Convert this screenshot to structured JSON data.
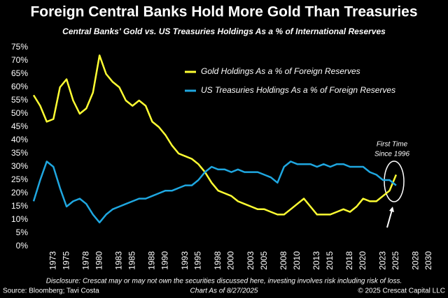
{
  "chart_data": {
    "type": "line",
    "title": "Foreign Central Banks Hold More Gold Than Treasuries",
    "subtitle": "Central Banks' Gold vs. US Treasuries Holdings As a % of International Reserves",
    "x": [
      1970,
      1971,
      1972,
      1973,
      1974,
      1975,
      1976,
      1977,
      1978,
      1979,
      1980,
      1981,
      1982,
      1983,
      1984,
      1985,
      1986,
      1987,
      1988,
      1989,
      1990,
      1991,
      1992,
      1993,
      1994,
      1995,
      1996,
      1997,
      1998,
      1999,
      2000,
      2001,
      2002,
      2003,
      2004,
      2005,
      2006,
      2007,
      2008,
      2009,
      2010,
      2011,
      2012,
      2013,
      2014,
      2015,
      2016,
      2017,
      2018,
      2019,
      2020,
      2021,
      2022,
      2023,
      2024,
      2025
    ],
    "series": [
      {
        "name": "Gold Holdings As a % of Foreign Reserves",
        "color": "#ffff33",
        "values": [
          57,
          53,
          47,
          48,
          60,
          63,
          55,
          50,
          52,
          58,
          72,
          65,
          62,
          60,
          55,
          53,
          55,
          53,
          47,
          45,
          42,
          38,
          35,
          34,
          33,
          31,
          28,
          24,
          21,
          20,
          19,
          17,
          16,
          15,
          14,
          14,
          13,
          12,
          12,
          14,
          16,
          18,
          15,
          12,
          12,
          12,
          13,
          14,
          13,
          15,
          18,
          17,
          17,
          19,
          21,
          27
        ]
      },
      {
        "name": "US Treasuries Holdings As a % of Foreign Reserves",
        "color": "#1fa7e0",
        "values": [
          17,
          25,
          32,
          30,
          22,
          15,
          17,
          18,
          16,
          12,
          9,
          12,
          14,
          15,
          16,
          17,
          18,
          18,
          19,
          20,
          21,
          21,
          22,
          23,
          23,
          25,
          28,
          30,
          29,
          29,
          28,
          29,
          28,
          28,
          28,
          27,
          26,
          24,
          30,
          32,
          31,
          31,
          31,
          30,
          31,
          30,
          31,
          31,
          30,
          30,
          30,
          28,
          27,
          25,
          25,
          23
        ]
      }
    ],
    "xlim": [
      1970,
      2030
    ],
    "xticks": [
      1973,
      1975,
      1978,
      1980,
      1983,
      1985,
      1988,
      1990,
      1993,
      1995,
      1998,
      2000,
      2003,
      2005,
      2008,
      2010,
      2013,
      2015,
      2018,
      2020,
      2023,
      2025,
      2028,
      2030
    ],
    "ylim": [
      0,
      75
    ],
    "yticks": [
      {
        "value": 0,
        "label": "0%"
      },
      {
        "value": 5,
        "label": "5%"
      },
      {
        "value": 10,
        "label": "10%"
      },
      {
        "value": 15,
        "label": "15%"
      },
      {
        "value": 20,
        "label": "20%"
      },
      {
        "value": 25,
        "label": "25%"
      },
      {
        "value": 30,
        "label": "30%"
      },
      {
        "value": 35,
        "label": "35%"
      },
      {
        "value": 40,
        "label": "40%"
      },
      {
        "value": 45,
        "label": "45%"
      },
      {
        "value": 50,
        "label": "50%"
      },
      {
        "value": 55,
        "label": "55%"
      },
      {
        "value": 60,
        "label": "60%"
      },
      {
        "value": 65,
        "label": "65%"
      },
      {
        "value": 70,
        "label": "70%"
      },
      {
        "value": 75,
        "label": "75%"
      }
    ],
    "grid": false,
    "annotation": [
      "First Time",
      "Since 1996"
    ],
    "disclosure": "Disclosure: Crescat may or may not own the securities discussed here, investing involves risk including risk of loss.",
    "source": "Source: Bloomberg; Tavi Costa",
    "chart_date": "Chart As of 8/27/2025",
    "copyright": "© 2025 Crescat Capital LLC"
  }
}
